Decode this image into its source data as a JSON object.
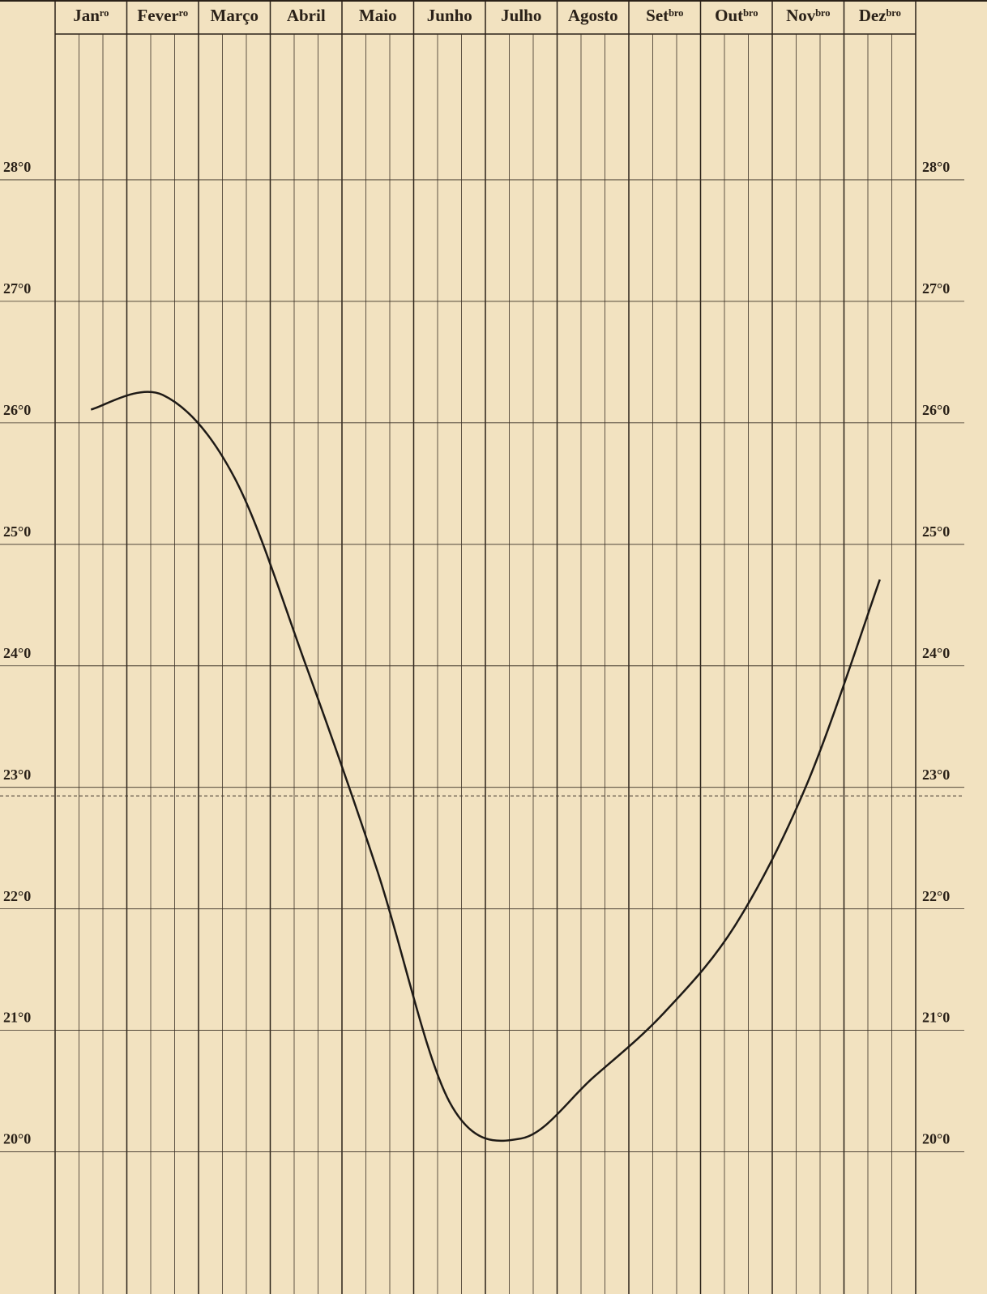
{
  "chart_data": {
    "type": "line",
    "categories": [
      "Janʳᵒ",
      "Feverʳᵒ",
      "Março",
      "Abril",
      "Maio",
      "Junho",
      "Julho",
      "Agosto",
      "Setᵇʳᵒ",
      "Outᵇʳᵒ",
      "Novᵇʳᵒ",
      "Dezᵇʳᵒ"
    ],
    "series": [
      {
        "color": "#1e1a16",
        "values": [
          26.11,
          26.23,
          25.55,
          24.0,
          22.3,
          20.41,
          20.11,
          20.61,
          21.15,
          21.88,
          23.05,
          24.71
        ]
      }
    ],
    "mean_line": 22.93,
    "ylim": [
      18.83,
      29.2
    ],
    "yticks": [
      {
        "value": 20,
        "label": "20°0"
      },
      {
        "value": 21,
        "label": "21°0"
      },
      {
        "value": 22,
        "label": "22°0"
      },
      {
        "value": 23,
        "label": "23°0"
      },
      {
        "value": 24,
        "label": "24°0"
      },
      {
        "value": 25,
        "label": "25°0"
      },
      {
        "value": 26,
        "label": "26°0"
      },
      {
        "value": 27,
        "label": "27°0"
      },
      {
        "value": 28,
        "label": "28°0"
      }
    ],
    "grid": true
  }
}
